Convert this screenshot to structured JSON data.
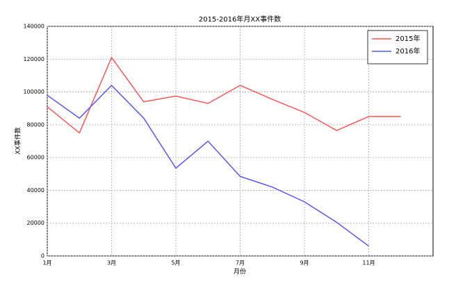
{
  "chart_data": {
    "type": "line",
    "title": "2015-2016年月XX事件数",
    "x_label": "月份",
    "y_label": "XX事件数",
    "x": [
      1,
      2,
      3,
      4,
      5,
      6,
      7,
      8,
      9,
      10,
      11,
      12
    ],
    "series": [
      {
        "name": "2015年",
        "color": "#ff5555",
        "values": [
          91000,
          75000,
          121000,
          94000,
          97500,
          93000,
          104000,
          95500,
          87500,
          76500,
          85000,
          85000
        ]
      },
      {
        "name": "2016年",
        "color": "#5555ff",
        "values": [
          98000,
          84000,
          104000,
          84000,
          53500,
          70000,
          48500,
          42000,
          33000,
          20500,
          6000,
          null
        ]
      }
    ],
    "xlim": [
      1,
      13
    ],
    "xticks": [
      {
        "value": 1,
        "label": "1月"
      },
      {
        "value": 3,
        "label": "3月"
      },
      {
        "value": 5,
        "label": "5月"
      },
      {
        "value": 7,
        "label": "7月"
      },
      {
        "value": 9,
        "label": "9月"
      },
      {
        "value": 11,
        "label": "11月"
      }
    ],
    "ylim": [
      0,
      140000
    ],
    "yticks": [
      0,
      20000,
      40000,
      60000,
      80000,
      100000,
      120000,
      140000
    ],
    "grid": true,
    "legend": "upper right"
  }
}
